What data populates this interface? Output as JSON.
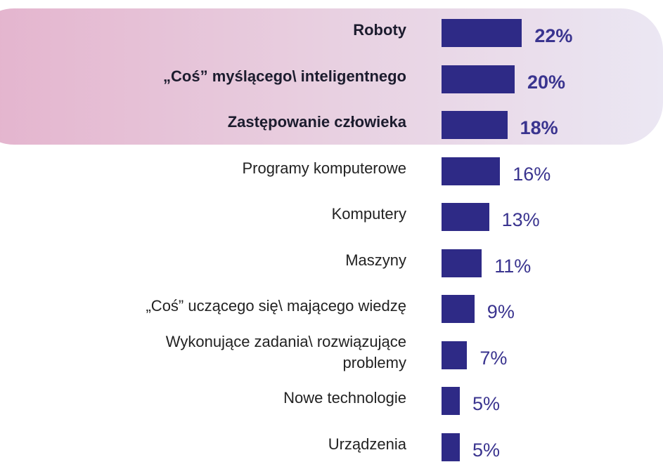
{
  "chart_data": {
    "type": "barh",
    "categories": [
      "Roboty",
      "„Coś” myślącego\\ inteligentnego",
      "Zastępowanie człowieka",
      "Programy komputerowe",
      "Komputery",
      "Maszyny",
      "„Coś” uczącego się\\ mającego wiedzę",
      "Wykonujące zadania\\ rozwiązujące\nproblemy",
      "Nowe technologie",
      "Urządzenia"
    ],
    "values": [
      22,
      20,
      18,
      16,
      13,
      11,
      9,
      7,
      5,
      5
    ],
    "value_labels": [
      "22%",
      "20%",
      "18%",
      "16%",
      "13%",
      "11%",
      "9%",
      "7%",
      "5%",
      "5%"
    ],
    "color": "#2e2a86"
  }
}
